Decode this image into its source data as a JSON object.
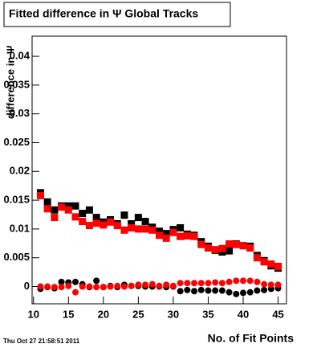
{
  "chart_data": {
    "type": "scatter",
    "title": "Fitted difference in Ψ  Global Tracks",
    "xlabel": "No. of Fit Points",
    "ylabel": "difference in Ψ",
    "timestamp": "Thu Oct 27 21:58:51 2011",
    "x": [
      11,
      12,
      13,
      14,
      15,
      16,
      17,
      18,
      19,
      20,
      21,
      22,
      23,
      24,
      25,
      26,
      27,
      28,
      29,
      30,
      31,
      32,
      33,
      34,
      35,
      36,
      37,
      38,
      39,
      40,
      41,
      42,
      43,
      44,
      45
    ],
    "series": [
      {
        "color": "#000000",
        "marker": "square",
        "values": [
          0.0163,
          0.0147,
          0.0133,
          0.014,
          0.014,
          0.014,
          0.0127,
          0.0133,
          0.012,
          0.0112,
          0.0116,
          0.0109,
          0.0124,
          0.0109,
          0.012,
          0.0113,
          0.0103,
          0.0096,
          0.0092,
          0.0099,
          0.0102,
          0.0091,
          0.0089,
          0.0078,
          0.007,
          0.0063,
          0.006,
          0.0062,
          0.0074,
          0.0071,
          0.007,
          0.0054,
          0.0045,
          0.0036,
          0.0032
        ]
      },
      {
        "color": "#ff0000",
        "marker": "square",
        "values": [
          0.0158,
          0.0135,
          0.012,
          0.0138,
          0.0133,
          0.0121,
          0.0113,
          0.0106,
          0.011,
          0.0107,
          0.0112,
          0.0106,
          0.0098,
          0.0102,
          0.01,
          0.01,
          0.0098,
          0.0089,
          0.0084,
          0.0094,
          0.0087,
          0.0088,
          0.0087,
          0.0073,
          0.0067,
          0.0064,
          0.0066,
          0.0074,
          0.0073,
          0.0071,
          0.0067,
          0.005,
          0.0043,
          0.0039,
          0.0035
        ]
      },
      {
        "color": "#000000",
        "marker": "circle",
        "values": [
          -0.0004,
          -0.0001,
          -0.0003,
          0.0008,
          0.0007,
          0.0008,
          0.0004,
          -0.0001,
          0.001,
          -0.0001,
          0.0001,
          -0.0001,
          0.0003,
          0.0001,
          0.0001,
          0,
          0,
          0,
          -0.0001,
          0,
          -0.0008,
          -0.0006,
          -0.0008,
          -0.0006,
          -0.0007,
          -0.0007,
          -0.0007,
          -0.001,
          -0.0013,
          -0.0011,
          -0.001,
          -0.0007,
          -0.0006,
          -0.0004,
          -0.0003
        ]
      },
      {
        "color": "#ff0000",
        "marker": "circle",
        "values": [
          0,
          0,
          -0.0001,
          -0.0001,
          0.0001,
          -0.001,
          0,
          0,
          -0.0001,
          -0.0001,
          0,
          0.0001,
          0,
          0.0001,
          0.0003,
          0.0003,
          0.0004,
          0.0001,
          0.0003,
          0.0001,
          0.0006,
          0.0006,
          0.0006,
          0.0006,
          0.0006,
          0.0007,
          0.0006,
          0.0008,
          0.001,
          0.001,
          0.001,
          0.0008,
          0.0004,
          0.0003,
          0.0003
        ]
      }
    ],
    "xlim": [
      9.8,
      46.2
    ],
    "xticks": [
      10,
      15,
      20,
      25,
      30,
      35,
      40,
      45
    ],
    "ylim": [
      -0.003,
      0.0435
    ],
    "yticks": [
      0,
      0.005,
      0.01,
      0.015,
      0.02,
      0.025,
      0.03,
      0.035,
      0.04
    ]
  }
}
